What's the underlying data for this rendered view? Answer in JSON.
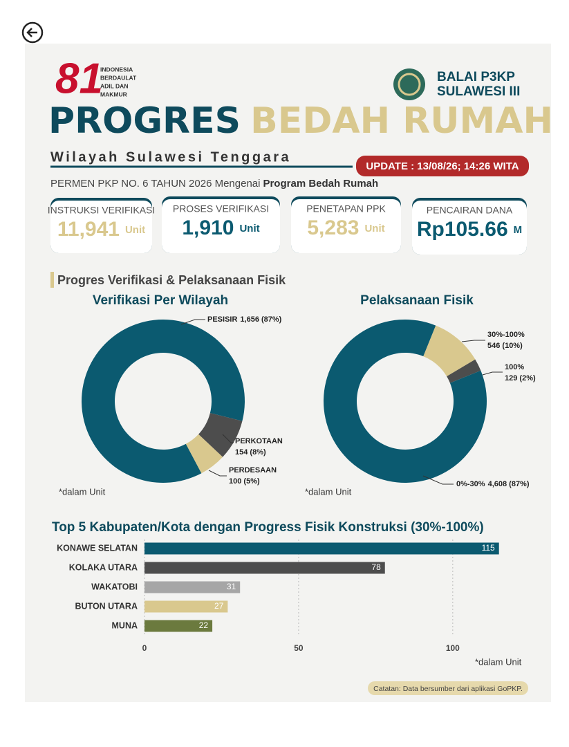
{
  "logo_left": {
    "mark": "81",
    "lines": [
      "INDONESIA",
      "BERDAULAT",
      "ADIL DAN",
      "MAKMUR"
    ]
  },
  "logo_right": {
    "lines": [
      "BALAI P3KP",
      "SULAWESI III"
    ]
  },
  "header": {
    "title_part1": "PROGRES",
    "title_part2": "BEDAH RUMAH",
    "subtitle": "Wilayah Sulawesi Tenggara",
    "update": "UPDATE : 13/08/26; 14:26 WITA",
    "regulation": "PERMEN PKP  NO. 6 TAHUN 2026 Mengenai",
    "regulation_bold": "Program Bedah Rumah"
  },
  "stats": [
    {
      "label": "INSTRUKSI VERIFIKASI",
      "value": "11,941",
      "unit": "Unit"
    },
    {
      "label": "PROSES VERIFIKASI",
      "value": "1,910",
      "unit": "Unit"
    },
    {
      "label": "PENETAPAN PPK",
      "value": "5,283",
      "unit": "Unit"
    },
    {
      "label": "PENCAIRAN DANA",
      "value": "Rp105.66",
      "unit": "M"
    }
  ],
  "section_title": "Progres Verifikasi & Pelaksanaan Fisik",
  "chart_data": [
    {
      "type": "pie",
      "title": "Verifikasi Per Wilayah",
      "categories": [
        "PESISIR",
        "PERKOTAAN",
        "PERDESAAN"
      ],
      "values": [
        1656,
        154,
        100
      ],
      "value_labels": [
        "1,656 (87%)",
        "154 (8%)",
        "100 (5%)"
      ],
      "colors": [
        "#0b5a70",
        "#4d4d4d",
        "#d9c88e"
      ],
      "note": "*dalam Unit"
    },
    {
      "type": "pie",
      "title": "Pelaksanaan Fisik",
      "categories": [
        "30%-100%",
        "100%",
        "0%-30%"
      ],
      "values": [
        546,
        129,
        4608
      ],
      "value_labels": [
        "546 (10%)",
        "129 (2%)",
        "4,608 (87%)"
      ],
      "colors": [
        "#d9c88e",
        "#4d4d4d",
        "#0b5a70"
      ],
      "note": "*dalam Unit"
    },
    {
      "type": "barh",
      "title": "Top 5 Kabupaten/Kota dengan Progress Fisik Konstruksi (30%-100%)",
      "categories": [
        "KONAWE SELATAN",
        "KOLAKA UTARA",
        "WAKATOBI",
        "BUTON UTARA",
        "MUNA"
      ],
      "values": [
        115,
        78,
        31,
        27,
        22
      ],
      "colors": [
        "#0b5a70",
        "#4d4d4d",
        "#a6a6a6",
        "#d9c88e",
        "#6b7a3e"
      ],
      "xlim": [
        0,
        120
      ],
      "xticks": [
        0,
        50,
        100
      ],
      "grid": true,
      "note": "*dalam Unit"
    }
  ],
  "footer": "Catatan: Data bersumber dari aplikasi GoPKP."
}
